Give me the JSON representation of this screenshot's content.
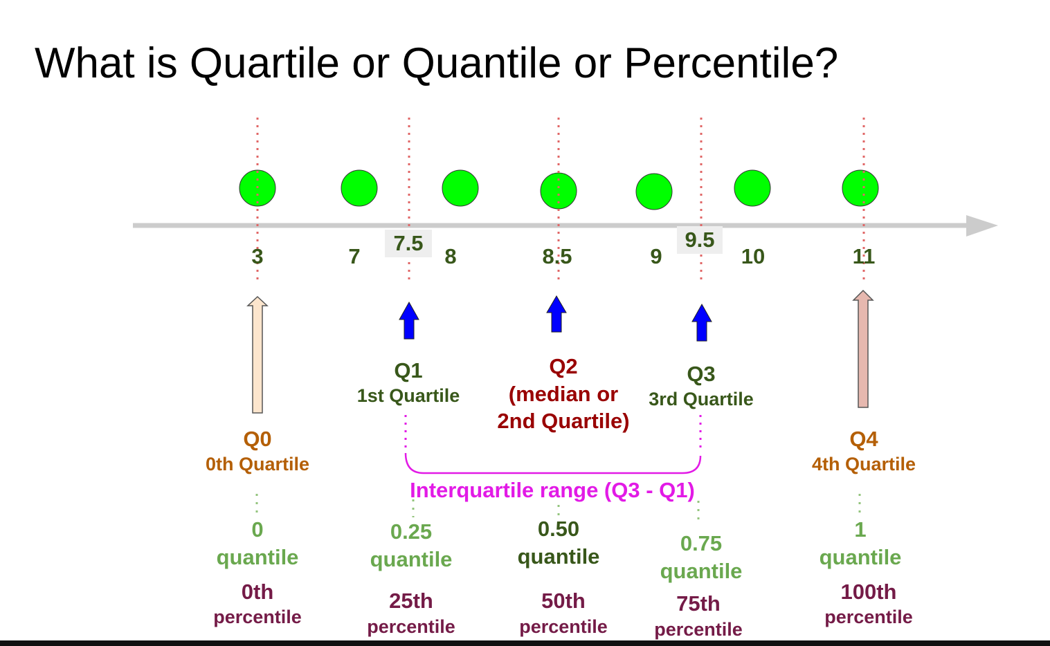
{
  "title": "What is Quartile or Quantile or Percentile?",
  "number_line": {
    "values": [
      "3",
      "7",
      "8",
      "8.5",
      "9",
      "10",
      "11"
    ],
    "interpolated": [
      "7.5",
      "9.5"
    ]
  },
  "quartiles": {
    "q0": {
      "name": "Q0",
      "desc": "0th Quartile"
    },
    "q1": {
      "name": "Q1",
      "desc": "1st Quartile"
    },
    "q2": {
      "name": "Q2",
      "desc_line1": "(median or",
      "desc_line2": "2nd Quartile)"
    },
    "q3": {
      "name": "Q3",
      "desc": "3rd Quartile"
    },
    "q4": {
      "name": "Q4",
      "desc": "4th Quartile"
    }
  },
  "iqr_label": "Interquartile range (Q3 - Q1)",
  "quantiles": [
    {
      "value": "0",
      "word": "quantile"
    },
    {
      "value": "0.25",
      "word": "quantile"
    },
    {
      "value": "0.50",
      "word": "quantile"
    },
    {
      "value": "0.75",
      "word": "quantile"
    },
    {
      "value": "1",
      "word": "quantile"
    }
  ],
  "percentiles": [
    {
      "value": "0th",
      "word": "percentile"
    },
    {
      "value": "25th",
      "word": "percentile"
    },
    {
      "value": "50th",
      "word": "percentile"
    },
    {
      "value": "75th",
      "word": "percentile"
    },
    {
      "value": "100th",
      "word": "percentile"
    }
  ],
  "colors": {
    "dot": "#00ff00",
    "axis": "#cccccc",
    "marker_line": "#e06666",
    "q_arrow": "#0000ff",
    "q0_arrow": "#fce5cd",
    "q4_arrow": "#e6b8af",
    "brace": "#e21ae6"
  }
}
